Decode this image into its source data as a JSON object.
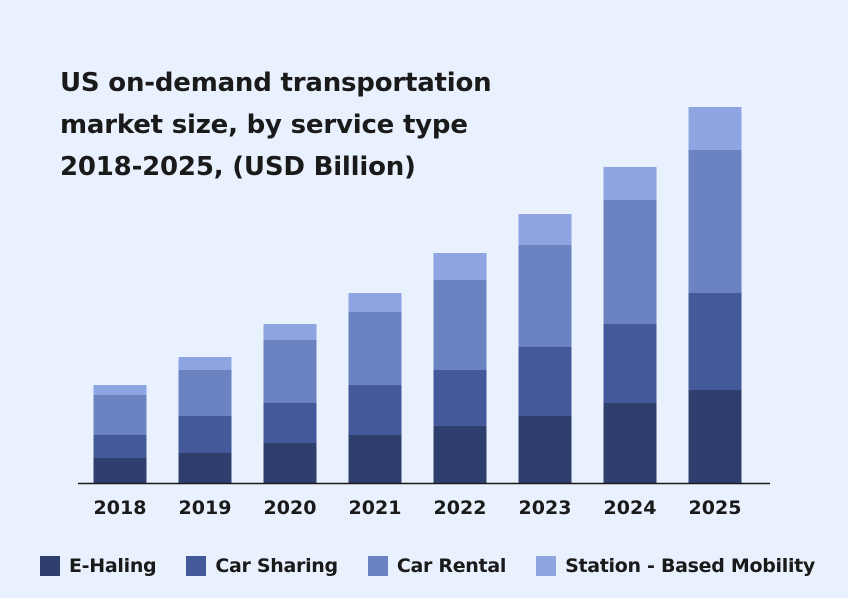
{
  "chart_data": {
    "type": "bar",
    "stacked": true,
    "title_lines": [
      "US on-demand transportation",
      "market size, by service type",
      "2018-2025, (USD Billion)"
    ],
    "title": "US on-demand transportation market size, by service type 2018-2025, (USD Billion)",
    "xlabel": "",
    "ylabel": "",
    "categories": [
      "2018",
      "2019",
      "2020",
      "2021",
      "2022",
      "2023",
      "2024",
      "2025"
    ],
    "series": [
      {
        "name": "E-Haling",
        "color": "#2e3f6e",
        "values": [
          25,
          30,
          40,
          48,
          57,
          67,
          80,
          93
        ]
      },
      {
        "name": "Car Sharing",
        "color": "#44599a",
        "values": [
          23,
          37,
          40,
          50,
          56,
          69,
          79,
          97
        ]
      },
      {
        "name": "Car Rental",
        "color": "#6b83c0",
        "values": [
          40,
          46,
          63,
          73,
          90,
          102,
          124,
          143
        ]
      },
      {
        "name": "Station - Based Mobility",
        "color": "#8ea5e2",
        "values": [
          10,
          13,
          16,
          19,
          27,
          31,
          33,
          43
        ]
      }
    ],
    "ylim": [
      0,
      400
    ],
    "grid": false,
    "legend_position": "bottom"
  },
  "colors": {
    "background": "#e8f1fd",
    "axis": "#1a1a1a"
  }
}
